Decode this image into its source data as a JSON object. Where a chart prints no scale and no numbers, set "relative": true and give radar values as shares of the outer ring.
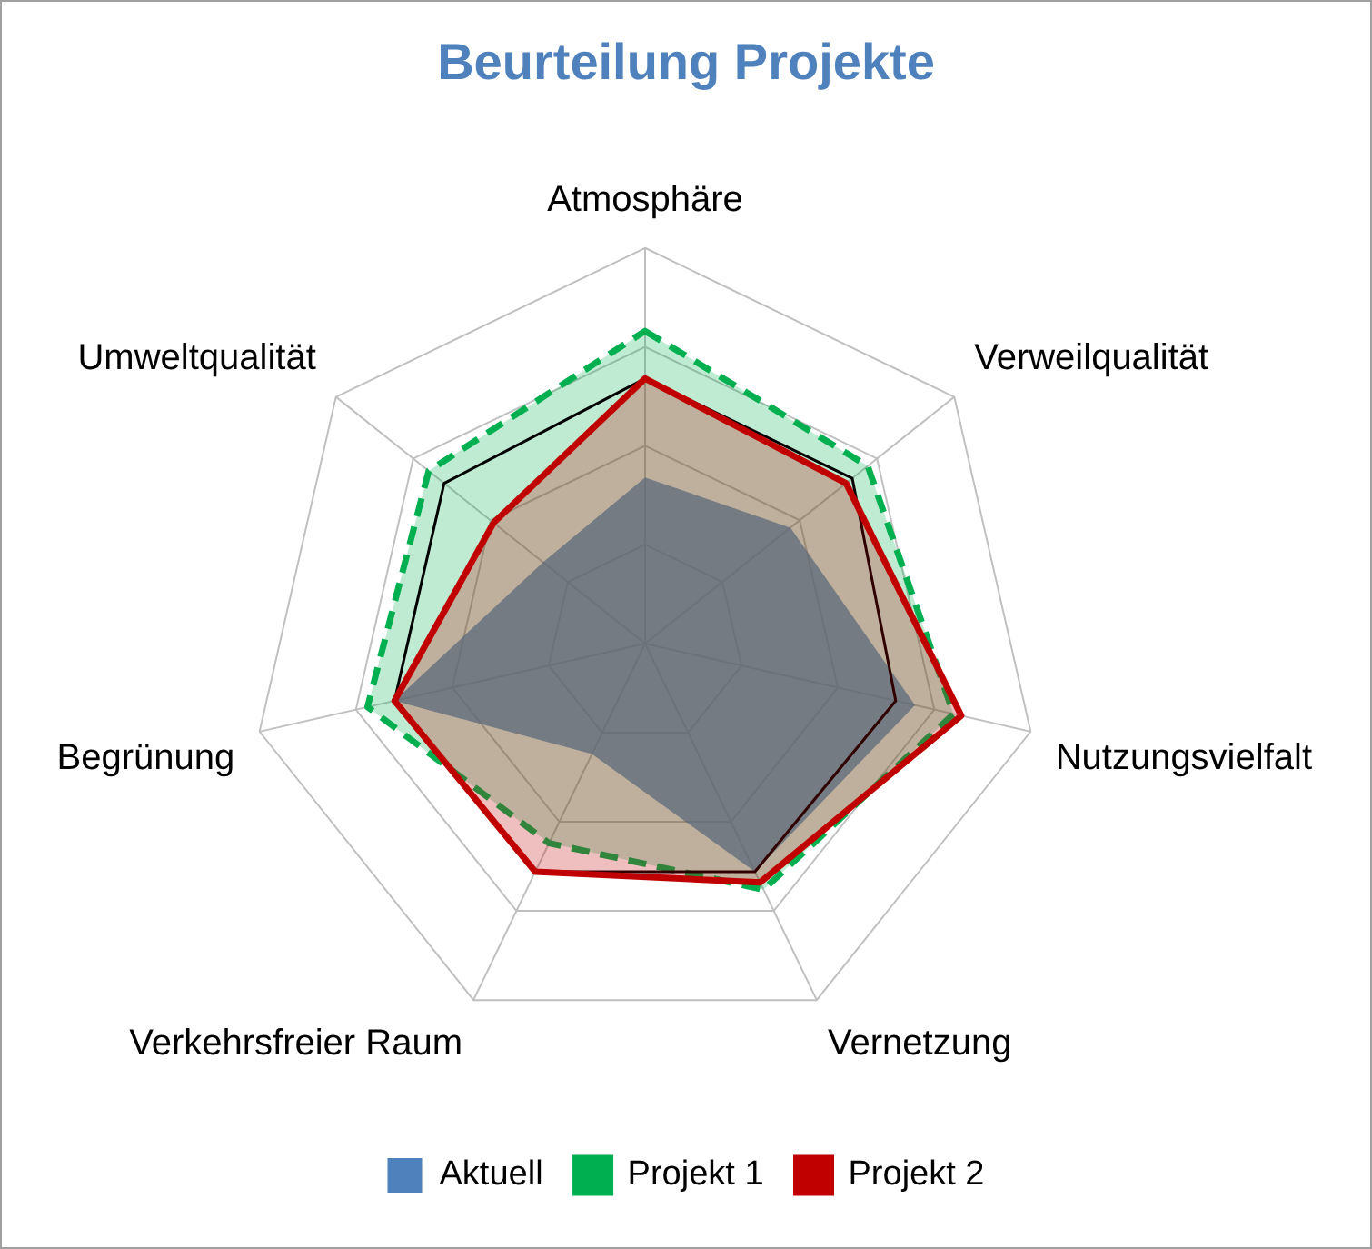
{
  "chart_data": {
    "type": "radar",
    "title": "Beurteilung Projekte",
    "relative": true,
    "grid": true,
    "legend": "bottom",
    "marker": "none",
    "categories": [
      "Atmosphäre",
      "Verweilqualität",
      "Nutzungsvielfalt",
      "Vernetzung",
      "Verkehrsfreier Raum",
      "Begrünung",
      "Umweltqualität"
    ],
    "series": [
      {
        "name": "Aktuell",
        "color": "#4f81bd",
        "values": [
          0.42,
          0.47,
          0.7,
          0.64,
          0.31,
          0.65,
          0.33
        ]
      },
      {
        "name": "Projekt 1",
        "color": "#00b050",
        "line_style": "dashed",
        "values": [
          0.79,
          0.72,
          0.8,
          0.69,
          0.56,
          0.72,
          0.7
        ]
      },
      {
        "color": "#000000",
        "line_style": "solid",
        "values": [
          0.67,
          0.67,
          0.65,
          0.64,
          0.64,
          0.65,
          0.65
        ]
      },
      {
        "name": "Projekt 2",
        "color": "#c00000",
        "line_style": "solid",
        "values": [
          0.67,
          0.65,
          0.82,
          0.67,
          0.64,
          0.65,
          0.49
        ]
      }
    ]
  }
}
